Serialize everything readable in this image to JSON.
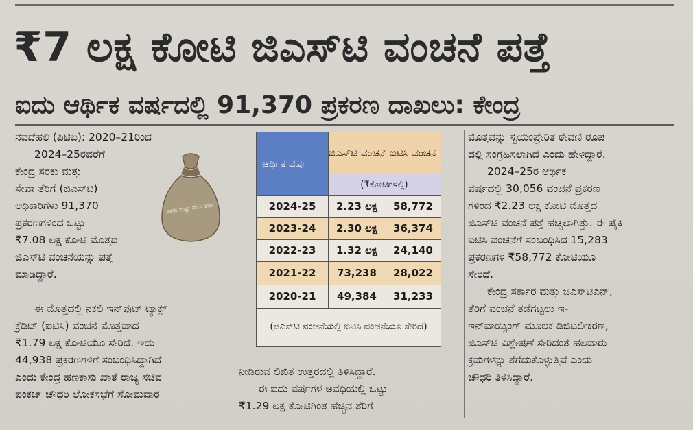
{
  "headline": "₹7 ಲಕ್ಷ ಕೋಟಿ ಜಿಎಸ್‌ಟಿ ವಂಚನೆ ಪತ್ತೆ",
  "subheadline": "ಐದು ಆರ್ಥಿಕ ವರ್ಷದಲ್ಲಿ 91,370 ಪ್ರಕರಣ ದಾಖಲು: ಕೇಂದ್ರ",
  "col1": {
    "lines": [
      "ನವದೆಹಲಿ (ಪಿಟಿಐ): 2020–21ರಿಂದ",
      "2024–25ರವರೆಗೆ",
      "ಕೇಂದ್ರ ಸರಕು ಮತ್ತು",
      "ಸೇವಾ ತೆರಿಗೆ (ಜಿಎಸ್‌ಟಿ)",
      "ಅಧಿಕಾರಿಗಳು 91,370",
      "ಪ್ರಕರಣಗಳಿಂದ ಒಟ್ಟು",
      "₹7.08 ಲಕ್ಷ ಕೋಟಿ ಮೊತ್ತದ",
      "ಜಿಎಸ್‌ಟಿ ವಂಚನೆಯನ್ನು ಪತ್ತೆ",
      "ಮಾಡಿದ್ದಾರೆ."
    ],
    "para2_lines": [
      "ಈ ಮೊತ್ತದಲ್ಲಿ ನಕಲಿ ಇನ್‌ಪುಟ್ ಟ್ಯಾಕ್ಸ್",
      "ಕ್ರೆಡಿಟ್ (ಐಟಿಸಿ) ವಂಚನೆ ಮೊತ್ತವಾದ",
      "₹1.79 ಲಕ್ಷ ಕೋಟಿಯೂ ಸೇರಿದೆ. ಇದು",
      "44,938 ಪ್ರಕರಣಗಳಿಗೆ ಸಂಬಂಧಿಸಿದ್ದಾಗಿದೆ",
      "ಎಂದು ಕೇಂದ್ರ ಹಣಕಾಸು ಖಾತೆ ರಾಜ್ಯ ಸಚಿವ",
      "ಪಂಕಜ್ ಚೌಧರಿ ಲೋಕಸಭೆಗೆ ಸೋಮವಾರ"
    ]
  },
  "bag_label": "ಸರಕು ಮತ್ತು ಸೇವಾ ತೆರಿಗೆ",
  "table": {
    "col_year": "ಆರ್ಥಿಕ ವರ್ಷ",
    "col_gst": "ಜಿಎಸ್‌ಟಿ ವಂಚನೆ",
    "col_itc": "ಐಟಿಸಿ ವಂಚನೆ",
    "unit": "(₹ಕೋಟಿಗಳಲ್ಲಿ)",
    "rows": [
      {
        "year": "2024-25",
        "gst": "2.23 ಲಕ್ಷ",
        "itc": "58,772"
      },
      {
        "year": "2023-24",
        "gst": "2.30 ಲಕ್ಷ",
        "itc": "36,374"
      },
      {
        "year": "2022-23",
        "gst": "1.32 ಲಕ್ಷ",
        "itc": "24,140"
      },
      {
        "year": "2021-22",
        "gst": "73,238",
        "itc": "28,022"
      },
      {
        "year": "2020-21",
        "gst": "49,384",
        "itc": "31,233"
      }
    ],
    "footnote": "(ಜಿಎಸ್‌ಟಿ ವಂಚನೆಯಲ್ಲಿ ಐಟಿಸಿ ವಂಚನೆಯೂ ಸೇರಿದೆ)"
  },
  "col2_bottom": {
    "lines": [
      "ನೀಡಿರುವ ಲಿಖಿತ ಉತ್ತರದಲ್ಲಿ ತಿಳಿಸಿದ್ದಾರೆ.",
      "ಈ ಐದು ವರ್ಷಗಳ ಅವಧಿಯಲ್ಲಿ ಒಟ್ಟು",
      "₹1.29 ಲಕ್ಷ ಕೋಟಿಗಿಂತ ಹೆಚ್ಚಿನ ತೆರಿಗೆ"
    ]
  },
  "col3": {
    "lines": [
      "ಮೊತ್ತವನ್ನು ಸ್ವಯಂಪ್ರೇರಿತ ಠೇವಣಿ ರೂಪ",
      "ದಲ್ಲಿ ಸಂಗ್ರಹಿಸಲಾಗಿದೆ ಎಂದು ಹೇಳಿದ್ದಾರೆ.",
      "2024–25ರ ಆರ್ಥಿಕ",
      "ವರ್ಷದಲ್ಲಿ 30,056 ವಂಚನೆ ಪ್ರಕರಣ",
      "ಗಳಿಂದ ₹2.23 ಲಕ್ಷ ಕೋಟಿ ಮೊತ್ತದ",
      "ಜಿಎಸ್‌ಟಿ ವಂಚನೆ ಪತ್ತೆ ಹಚ್ಚಲಾಗಿತ್ತು. ಈ ಪೈಕಿ",
      "ಐಟಿಸಿ ವಂಚನೆಗೆ ಸಂಬಂಧಿಸಿದ 15,283",
      "ಪ್ರಕರಣಗಳ ₹58,772 ಕೋಟಿಯೂ",
      "ಸೇರಿದೆ.",
      "ಕೇಂದ್ರ ಸರ್ಕಾರ ಮತ್ತು ಜಿಎಸ್‌ಟಿಎನ್,",
      "ತೆರಿಗೆ ವಂಚನೆ ತಡೆಗಟ್ಟಲು ಇ-",
      "ಇನ್‌ವಾಯ್ಸಿಂಗ್ ಮೂಲಕ ಡಿಜಿಟಲೀಕರಣ,",
      "ಜಿಎಸ್‌ಟಿ ವಿಶ್ಲೇಷಣೆ ಸೇರಿದಂತೆ ಹಲವಾರು",
      "ಕ್ರಮಗಳನ್ನು ತೆಗೆದುಕೊಳ್ಳುತ್ತಿವೆ ಎಂದು",
      "ಚೌಧರಿ ತಿಳಿಸಿದ್ದಾರೆ."
    ]
  }
}
